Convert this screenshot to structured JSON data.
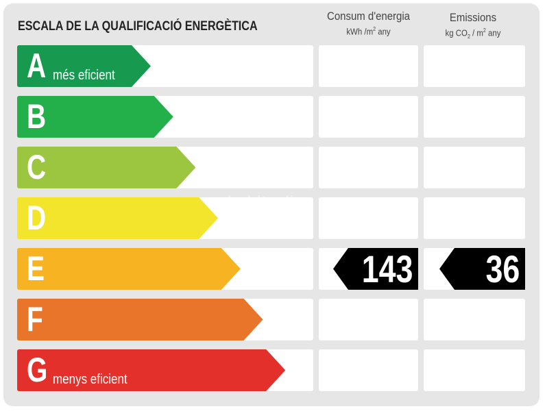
{
  "chart_data": {
    "type": "table",
    "title": "ESCALA DE LA QUALIFICACIÓ ENERGÈTICA",
    "columns": [
      {
        "name": "Consum d'energia",
        "unit_pre": "kWh /m",
        "unit_sup": "2",
        "unit_post": " any"
      },
      {
        "name": "Emissions",
        "unit_pre": "kg CO",
        "unit_sub": "2",
        "unit_mid": " / m",
        "unit_sup": "2",
        "unit_post": " any"
      }
    ],
    "classes": [
      {
        "letter": "A",
        "desc": "més eficient",
        "color": "#17994f"
      },
      {
        "letter": "B",
        "desc": "",
        "color": "#23b04b"
      },
      {
        "letter": "C",
        "desc": "",
        "color": "#9cc63f"
      },
      {
        "letter": "D",
        "desc": "",
        "color": "#f2e52c"
      },
      {
        "letter": "E",
        "desc": "",
        "color": "#f7b322"
      },
      {
        "letter": "F",
        "desc": "",
        "color": "#e8752a"
      },
      {
        "letter": "G",
        "desc": "menys eficient",
        "color": "#e4302b"
      }
    ],
    "rating": {
      "class": "E",
      "consumption": "143",
      "emissions": "36"
    }
  },
  "watermark": "habitaclia"
}
